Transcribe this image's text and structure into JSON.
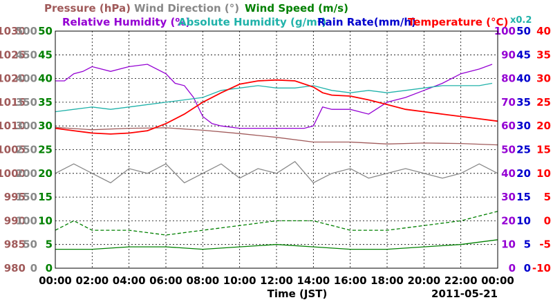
{
  "chart_data": {
    "type": "line",
    "xlabel": "Time (JST)",
    "date": "2011-05-21",
    "x_ticks": [
      "00:00",
      "02:00",
      "04:00",
      "06:00",
      "08:00",
      "10:00",
      "12:00",
      "14:00",
      "16:00",
      "18:00",
      "20:00",
      "22:00",
      "00:00"
    ],
    "x_range_hours": [
      0,
      24
    ],
    "grid": true,
    "legend": {
      "row1": [
        "Pressure (hPa)",
        "Wind Direction (°)",
        "Wind Speed (m/s)"
      ],
      "row2": [
        "Relative Humidity (%)",
        "Absolute Humidity (g/m³)",
        "Rain Rate(mm/h)",
        "Temperature (°C)"
      ],
      "scale_note": "x0.2"
    },
    "colors": {
      "pressure": "#a05a5a",
      "wind_direction": "#888888",
      "wind_speed": "#008000",
      "relative_humidity": "#9400d3",
      "absolute_humidity": "#20b2aa",
      "rain_rate": "#0000cd",
      "temperature": "#ff0000"
    },
    "axes": {
      "pressure": {
        "label": "Pressure (hPa)",
        "ticks": [
          "1030",
          "1025",
          "1020",
          "1015",
          "1010",
          "1005",
          "1000",
          "995",
          "990",
          "985",
          "980"
        ],
        "range": [
          980,
          1030
        ]
      },
      "wind_direction": {
        "label": "Wind Direction (°)",
        "ticks": [
          "500",
          "450",
          "400",
          "350",
          "300",
          "250",
          "200",
          "150",
          "100",
          "50",
          "0"
        ],
        "range": [
          0,
          500
        ]
      },
      "wind_speed": {
        "label": "Wind Speed (m/s)",
        "ticks": [
          "50",
          "45",
          "40",
          "35",
          "30",
          "25",
          "20",
          "15",
          "10",
          "5",
          "0"
        ],
        "range": [
          0,
          50
        ]
      },
      "relative_humidity": {
        "label": "Relative Humidity (%)",
        "ticks": [
          "100",
          "90",
          "80",
          "70",
          "60",
          "50",
          "40",
          "30",
          "20",
          "10",
          "0"
        ],
        "range": [
          0,
          100
        ]
      },
      "rain_rate": {
        "label": "Rain Rate(mm/h)",
        "ticks": [
          "50",
          "45",
          "40",
          "35",
          "30",
          "25",
          "20",
          "15",
          "10",
          "5",
          "0"
        ],
        "range": [
          0,
          50
        ]
      },
      "temperature": {
        "label": "Temperature (°C)",
        "ticks": [
          "40",
          "35",
          "30",
          "25",
          "20",
          "15",
          "10",
          "5",
          "0",
          "-5",
          "-10"
        ],
        "range": [
          -10,
          40
        ]
      }
    },
    "series": [
      {
        "name": "Pressure (hPa)",
        "axis": "pressure",
        "x": [
          0,
          2,
          4,
          6,
          8,
          10,
          12,
          14,
          16,
          18,
          20,
          22,
          24
        ],
        "values": [
          1009.7,
          1009.2,
          1009.5,
          1009.6,
          1009.1,
          1008.4,
          1007.6,
          1006.6,
          1006.6,
          1006.2,
          1006.4,
          1006.3,
          1006.0
        ]
      },
      {
        "name": "Wind Direction (°)",
        "axis": "wind_direction",
        "x": [
          0,
          1,
          2,
          3,
          4,
          5,
          6,
          7,
          8,
          9,
          10,
          11,
          12,
          13,
          14,
          15,
          16,
          17,
          18,
          19,
          20,
          21,
          22,
          23,
          24
        ],
        "values": [
          200,
          220,
          200,
          180,
          210,
          200,
          220,
          180,
          200,
          220,
          190,
          210,
          200,
          225,
          180,
          200,
          210,
          190,
          200,
          210,
          200,
          190,
          200,
          220,
          200
        ]
      },
      {
        "name": "Wind Speed (m/s) mean",
        "axis": "wind_speed",
        "x": [
          0,
          2,
          4,
          6,
          8,
          10,
          12,
          14,
          16,
          18,
          20,
          22,
          24
        ],
        "values": [
          4,
          4,
          4.5,
          4.5,
          4,
          4.5,
          5,
          4.5,
          4,
          4,
          4.5,
          5,
          6
        ]
      },
      {
        "name": "Wind Speed (m/s) max",
        "axis": "wind_speed",
        "x": [
          0,
          1,
          2,
          4,
          6,
          8,
          10,
          12,
          14,
          16,
          18,
          20,
          22,
          23,
          24
        ],
        "values": [
          8,
          10,
          8,
          8,
          7,
          8,
          9,
          10,
          10,
          8,
          8,
          9,
          10,
          11,
          12
        ]
      },
      {
        "name": "Relative Humidity (%)",
        "axis": "relative_humidity",
        "x": [
          0,
          0.5,
          1,
          1.5,
          2,
          3,
          4,
          5,
          6,
          6.5,
          7,
          7.5,
          8,
          8.5,
          9,
          10,
          11,
          12,
          13,
          13.5,
          14,
          14.5,
          15,
          16,
          17,
          18,
          19,
          20,
          21,
          22,
          23,
          23.7
        ],
        "values": [
          79,
          79,
          82,
          83,
          85,
          83,
          85,
          86,
          82,
          78,
          77,
          72,
          64,
          61,
          60,
          59,
          59,
          59,
          59,
          59,
          60,
          68,
          67,
          67,
          65,
          70,
          72,
          75,
          78,
          82,
          84,
          86
        ]
      },
      {
        "name": "Absolute Humidity (g/m³)",
        "axis": "relative_humidity",
        "x": [
          0,
          1,
          2,
          3,
          4,
          5,
          6,
          7,
          8,
          9,
          10,
          11,
          12,
          13,
          14,
          15,
          16,
          17,
          18,
          19,
          20,
          21,
          22,
          23,
          23.7
        ],
        "values": [
          66,
          67,
          68,
          67,
          68,
          69,
          70,
          71,
          72,
          75,
          76,
          77,
          76,
          76,
          77,
          75,
          74,
          75,
          74,
          75,
          76,
          77,
          77,
          77,
          78
        ]
      },
      {
        "name": "Temperature (°C)",
        "axis": "temperature",
        "x": [
          0,
          1,
          2,
          3,
          4,
          5,
          6,
          7,
          8,
          9,
          10,
          11,
          12,
          13,
          14,
          14.5,
          15,
          16,
          17,
          18,
          19,
          20,
          21,
          22,
          23,
          24
        ],
        "values": [
          19.5,
          19,
          18.5,
          18.3,
          18.5,
          19,
          20.5,
          22.5,
          25,
          27,
          28.8,
          29.5,
          29.7,
          29.5,
          28.2,
          27,
          26.5,
          26.3,
          25.5,
          24.5,
          23.5,
          23,
          22.5,
          22,
          21.5,
          21
        ]
      }
    ]
  }
}
